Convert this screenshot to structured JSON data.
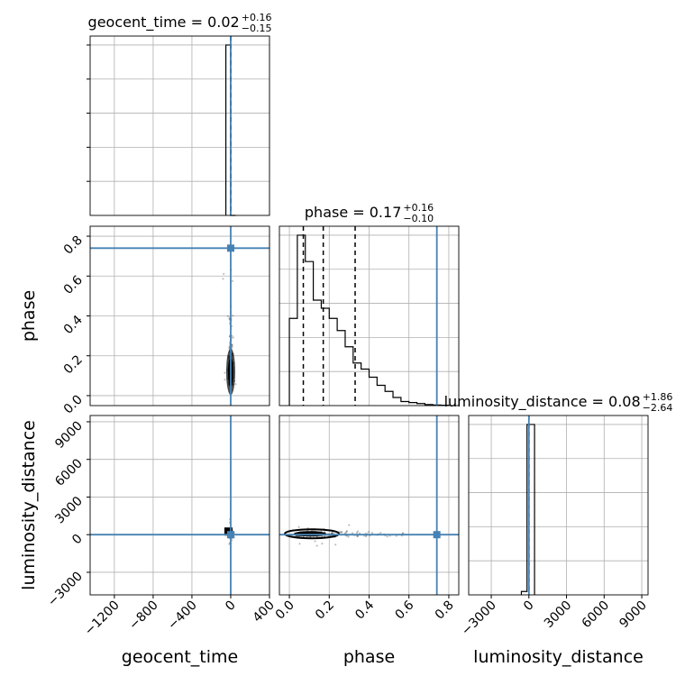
{
  "chart_data": {
    "type": "corner",
    "parameters": [
      "geocent_time",
      "phase",
      "luminosity_distance"
    ],
    "axis_labels": {
      "geocent_time": "geocent_time",
      "phase": "phase",
      "luminosity_distance": "luminosity_distance"
    },
    "titles": [
      {
        "param": "geocent_time",
        "text": "geocent_time = 0.02",
        "sup": "+0.16",
        "sub": "−0.15"
      },
      {
        "param": "phase",
        "text": "phase = 0.17",
        "sup": "+0.16",
        "sub": "−0.10"
      },
      {
        "param": "luminosity_distance",
        "text": "luminosity_distance = 0.08",
        "sup": "+1.86",
        "sub": "−2.64"
      }
    ],
    "ranges": {
      "geocent_time": [
        -1450,
        400
      ],
      "phase": [
        -0.05,
        0.85
      ],
      "luminosity_distance": [
        -4800,
        9500
      ]
    },
    "ticks": {
      "geocent_time": [
        -1200,
        -800,
        -400,
        0,
        400
      ],
      "phase": [
        0.0,
        0.2,
        0.4,
        0.6,
        0.8
      ],
      "luminosity_distance": [
        -3000,
        0,
        3000,
        6000,
        9000
      ]
    },
    "tick_labels": {
      "geocent_time": [
        "−1200",
        "−800",
        "−400",
        "0",
        "400"
      ],
      "phase": [
        "0.0",
        "0.2",
        "0.4",
        "0.6",
        "0.8"
      ],
      "luminosity_distance": [
        "−3000",
        "0",
        "3000",
        "6000",
        "9000"
      ]
    },
    "truths": {
      "geocent_time": 0,
      "phase": 0.74,
      "luminosity_distance": 0
    },
    "quantiles": {
      "geocent_time": [
        -0.13,
        0.02,
        0.18
      ],
      "phase": [
        0.07,
        0.17,
        0.33
      ],
      "luminosity_distance": [
        -2.56,
        0.08,
        1.94
      ]
    },
    "histograms": {
      "geocent_time": {
        "bins": [
          -50,
          0,
          50
        ],
        "counts": [
          1.0,
          0.0
        ]
      },
      "phase": {
        "bins": [
          0.0,
          0.04,
          0.08,
          0.12,
          0.16,
          0.2,
          0.24,
          0.28,
          0.32,
          0.36,
          0.4,
          0.44,
          0.48,
          0.52,
          0.56,
          0.6,
          0.64,
          0.68,
          0.72,
          0.76,
          0.8
        ],
        "counts": [
          0.43,
          0.84,
          0.71,
          0.52,
          0.48,
          0.43,
          0.37,
          0.29,
          0.21,
          0.18,
          0.14,
          0.1,
          0.07,
          0.04,
          0.02,
          0.015,
          0.01,
          0.005,
          0.003,
          0.002
        ]
      },
      "luminosity_distance": {
        "bins": [
          -600,
          -150,
          0,
          450
        ],
        "counts": [
          0.02,
          1.0,
          1.0
        ]
      }
    },
    "grid": true,
    "truth_color": "#4682b4",
    "line_color": "#000000"
  }
}
